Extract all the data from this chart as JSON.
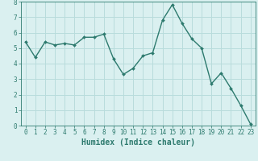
{
  "x": [
    0,
    1,
    2,
    3,
    4,
    5,
    6,
    7,
    8,
    9,
    10,
    11,
    12,
    13,
    14,
    15,
    16,
    17,
    18,
    19,
    20,
    21,
    22,
    23
  ],
  "y": [
    5.4,
    4.4,
    5.4,
    5.2,
    5.3,
    5.2,
    5.7,
    5.7,
    5.9,
    4.3,
    3.3,
    3.7,
    4.5,
    4.7,
    6.8,
    7.8,
    6.6,
    5.6,
    5.0,
    2.7,
    3.4,
    2.4,
    1.3,
    0.1
  ],
  "line_color": "#2d7a6e",
  "marker": "D",
  "marker_size": 2,
  "line_width": 1.0,
  "xlabel": "Humidex (Indice chaleur)",
  "xlabel_fontsize": 7,
  "xlabel_color": "#2d7a6e",
  "bg_color": "#daf0f0",
  "grid_color": "#b8dcdc",
  "axis_color": "#2d7a6e",
  "tick_color": "#2d7a6e",
  "ylim": [
    0,
    8
  ],
  "xlim": [
    -0.5,
    23.5
  ],
  "yticks": [
    0,
    1,
    2,
    3,
    4,
    5,
    6,
    7,
    8
  ],
  "xticks": [
    0,
    1,
    2,
    3,
    4,
    5,
    6,
    7,
    8,
    9,
    10,
    11,
    12,
    13,
    14,
    15,
    16,
    17,
    18,
    19,
    20,
    21,
    22,
    23
  ],
  "tick_fontsize": 5.5,
  "ylabel_fontsize": 6
}
